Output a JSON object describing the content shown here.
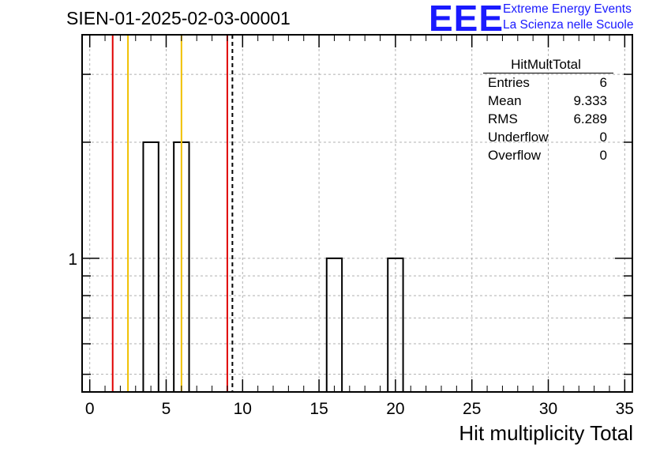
{
  "title": "SIEN-01-2025-02-03-00001",
  "logo": {
    "text": "EEE",
    "line1": "Extreme Energy Events",
    "line2": "La Scienza nelle Scuole",
    "color": "#1a1aff"
  },
  "stats_box": {
    "title": "HitMultTotal",
    "rows": [
      {
        "label": "Entries",
        "value": "6"
      },
      {
        "label": "Mean",
        "value": "9.333"
      },
      {
        "label": "RMS",
        "value": "6.289"
      },
      {
        "label": "Underflow",
        "value": "0"
      },
      {
        "label": "Overflow",
        "value": "0"
      }
    ]
  },
  "chart_data": {
    "type": "bar",
    "histogram": true,
    "xlabel": "Hit multiplicity Total",
    "ylabel": "",
    "xlim": [
      -0.5,
      35.5
    ],
    "ylim": [
      0.45,
      3.8
    ],
    "yscale": "log",
    "xticks": [
      0,
      5,
      10,
      15,
      20,
      25,
      30,
      35
    ],
    "yticks": [
      1
    ],
    "bin_width": 1,
    "bins": [
      {
        "x": 4,
        "count": 2
      },
      {
        "x": 6,
        "count": 2
      },
      {
        "x": 16,
        "count": 1
      },
      {
        "x": 20,
        "count": 1
      }
    ],
    "vertical_lines": [
      {
        "x": 1.5,
        "color": "#e00000",
        "style": "solid"
      },
      {
        "x": 2.5,
        "color": "#f0c000",
        "style": "solid"
      },
      {
        "x": 6.0,
        "color": "#f0c000",
        "style": "solid"
      },
      {
        "x": 9.0,
        "color": "#e00000",
        "style": "solid"
      },
      {
        "x": 9.333,
        "color": "#000000",
        "style": "dashed"
      }
    ],
    "grid": true,
    "legend": "top-right"
  }
}
